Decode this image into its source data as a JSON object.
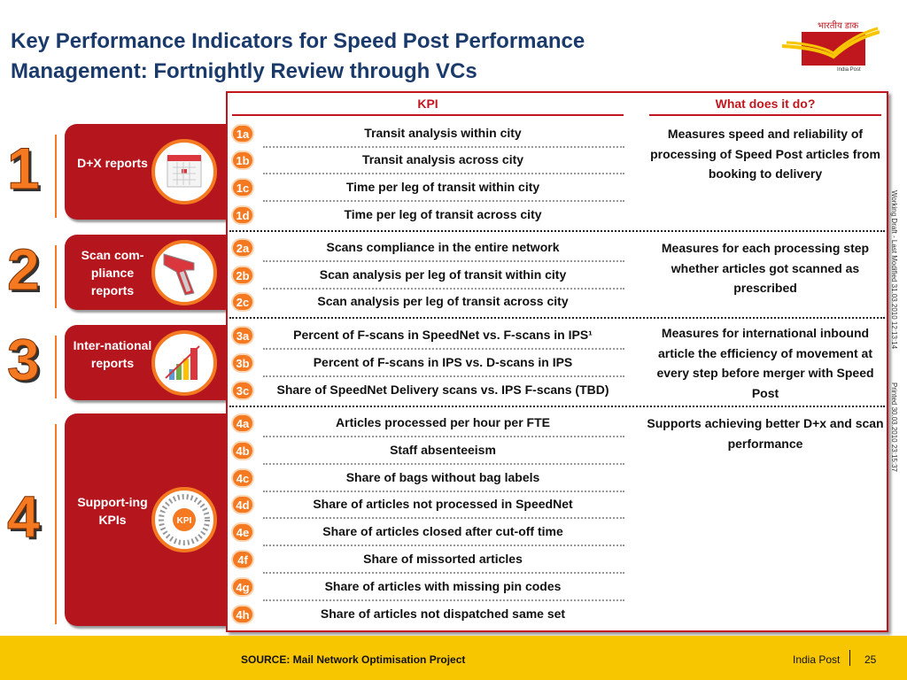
{
  "title": {
    "line1": "Key Performance Indicators for Speed Post Performance",
    "line2": "Management: Fortnightly Review through VCs"
  },
  "logo": {
    "text_hindi": "भारतीय डाक",
    "text_en": "India Post"
  },
  "headers": {
    "kpi": "KPI",
    "what": "What does it do?"
  },
  "groups": [
    {
      "number": "1",
      "label": "D+X reports",
      "icon": "calendar-icon",
      "description": "Measures speed and reliability of processing of Speed Post articles from booking to delivery",
      "kpis": [
        {
          "id": "1a",
          "text": "Transit analysis within city"
        },
        {
          "id": "1b",
          "text": "Transit analysis across city"
        },
        {
          "id": "1c",
          "text": "Time per leg of transit within city"
        },
        {
          "id": "1d",
          "text": "Time per leg of transit across city"
        }
      ]
    },
    {
      "number": "2",
      "label": "Scan com-pliance reports",
      "icon": "barcode-scanner-icon",
      "description": "Measures for each processing step whether articles got scanned as prescribed",
      "kpis": [
        {
          "id": "2a",
          "text": "Scans compliance in the entire network"
        },
        {
          "id": "2b",
          "text": "Scan analysis per leg of transit within city"
        },
        {
          "id": "2c",
          "text": "Scan analysis per leg of transit across city"
        }
      ]
    },
    {
      "number": "3",
      "label": "Inter-national reports",
      "icon": "bar-chart-icon",
      "description": "Measures for international inbound article the efficiency of movement at every step before merger with Speed Post",
      "kpis": [
        {
          "id": "3a",
          "text": "Percent of F-scans in SpeedNet vs. F-scans in IPS¹"
        },
        {
          "id": "3b",
          "text": "Percent of F-scans in IPS vs. D-scans in IPS"
        },
        {
          "id": "3c",
          "text": "Share of SpeedNet Delivery scans vs. IPS F-scans (TBD)"
        }
      ]
    },
    {
      "number": "4",
      "label": "Support-ing KPIs",
      "icon": "kpi-icon",
      "icon_text": "KPI",
      "description": "Supports achieving better D+x and scan performance",
      "kpis": [
        {
          "id": "4a",
          "text": "Articles processed per hour per FTE"
        },
        {
          "id": "4b",
          "text": "Staff absenteeism"
        },
        {
          "id": "4c",
          "text": "Share of bags without bag labels"
        },
        {
          "id": "4d",
          "text": "Share of articles not processed in SpeedNet"
        },
        {
          "id": "4e",
          "text": "Share of articles closed after cut-off time"
        },
        {
          "id": "4f",
          "text": "Share of missorted articles"
        },
        {
          "id": "4g",
          "text": "Share of articles with missing pin codes"
        },
        {
          "id": "4h",
          "text": "Share of articles not dispatched same set"
        }
      ]
    }
  ],
  "side": {
    "draft": "Working Draft - Last Modified 31.03.2010 12:13:14",
    "printed": "Printed 30.03.2010 23:15:37"
  },
  "footer": {
    "source": "SOURCE: Mail Network Optimisation Project",
    "org": "India Post",
    "page": "25"
  }
}
